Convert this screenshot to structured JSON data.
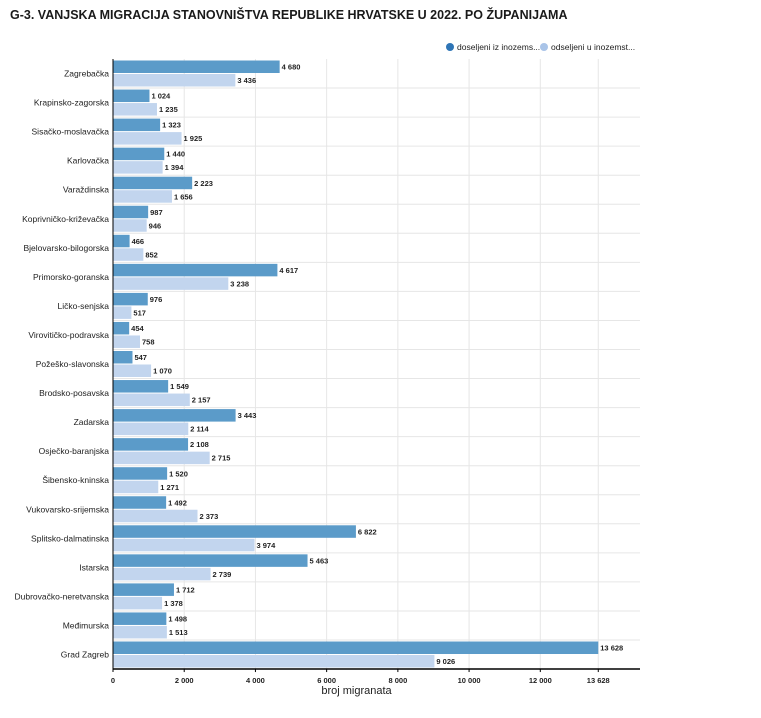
{
  "title": "G-3. VANJSKA MIGRACIJA STANOVNIŠTVA REPUBLIKE HRVATSKE U 2022. PO ŽUPANIJAMA",
  "chart_data": {
    "type": "bar",
    "orientation": "horizontal",
    "title": "G-3. VANJSKA MIGRACIJA STANOVNIŠTVA REPUBLIKE HRVATSKE U 2022. PO ŽUPANIJAMA",
    "xlabel": "broj migranata",
    "ylabel": "",
    "xlim": [
      0,
      14800
    ],
    "categories": [
      "Zagrebačka",
      "Krapinsko-zagorska",
      "Sisačko-moslavačka",
      "Karlovačka",
      "Varaždinska",
      "Koprivničko-križevačka",
      "Bjelovarsko-bilogorska",
      "Primorsko-goranska",
      "Ličko-senjska",
      "Virovitičko-podravska",
      "Požeško-slavonska",
      "Brodsko-posavska",
      "Zadarska",
      "Osječko-baranjska",
      "Šibensko-kninska",
      "Vukovarsko-srijemska",
      "Splitsko-dalmatinska",
      "Istarska",
      "Dubrovačko-neretvanska",
      "Međimurska",
      "Grad Zagreb"
    ],
    "series": [
      {
        "name": "doseljeni iz inozems...",
        "color": "#5b9bc9",
        "values": [
          4680,
          1024,
          1323,
          1440,
          2223,
          987,
          466,
          4617,
          976,
          454,
          547,
          1549,
          3443,
          2108,
          1520,
          1492,
          6822,
          5463,
          1712,
          1498,
          13628
        ],
        "labels": [
          "4 680",
          "1 024",
          "1 323",
          "1 440",
          "2 223",
          "987",
          "466",
          "4 617",
          "976",
          "454",
          "547",
          "1 549",
          "3 443",
          "2 108",
          "1 520",
          "1 492",
          "6 822",
          "5 463",
          "1 712",
          "1 498",
          "13 628"
        ]
      },
      {
        "name": "odseljeni u inozemst...",
        "color": "#c2d5ee",
        "values": [
          3436,
          1235,
          1925,
          1394,
          1656,
          946,
          852,
          3238,
          517,
          758,
          1070,
          2157,
          2114,
          2715,
          1271,
          2373,
          3974,
          2739,
          1378,
          1513,
          9026
        ],
        "labels": [
          "3 436",
          "1 235",
          "1 925",
          "1 394",
          "1 656",
          "946",
          "852",
          "3 238",
          "517",
          "758",
          "1 070",
          "2 157",
          "2 114",
          "2 715",
          "1 271",
          "2 373",
          "3 974",
          "2 739",
          "1 378",
          "1 513",
          "9 026"
        ]
      }
    ],
    "x_ticks": [
      0,
      2000,
      4000,
      6000,
      8000,
      10000,
      12000,
      13628
    ],
    "x_tick_labels": [
      "0",
      "2 000",
      "4 000",
      "6 000",
      "8 000",
      "10 000",
      "12 000",
      "13 628"
    ],
    "legend_position": "top-right",
    "grid": true,
    "axis_color": "#000000",
    "grid_color": "#e6e6e6",
    "legend_dot_colors": [
      "#2e75b6",
      "#a9c4e8"
    ]
  }
}
